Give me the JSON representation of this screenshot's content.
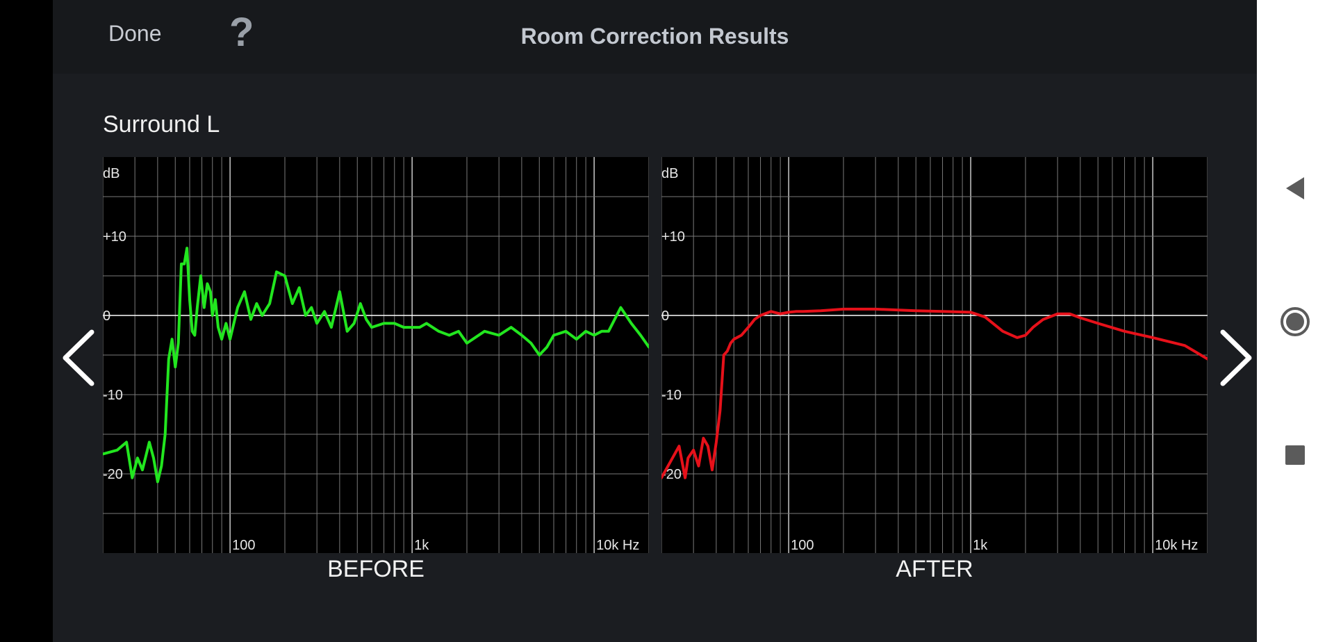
{
  "header": {
    "done_label": "Done",
    "help_label": "?",
    "title": "Room Correction Results"
  },
  "channel_name": "Surround L",
  "charts": [
    {
      "caption": "BEFORE",
      "y_unit": "dB",
      "y_ticks": [
        "+10",
        "0",
        "-10",
        "-20"
      ],
      "x_ticks": [
        "100",
        "1k",
        "10k Hz"
      ],
      "line_color": "#22e61f"
    },
    {
      "caption": "AFTER",
      "y_unit": "dB",
      "y_ticks": [
        "+10",
        "0",
        "-10",
        "-20"
      ],
      "x_ticks": [
        "100",
        "1k",
        "10k Hz"
      ],
      "line_color": "#e6111a"
    }
  ],
  "chart_data": [
    {
      "type": "line",
      "title": "BEFORE",
      "xlabel": "Hz",
      "ylabel": "dB",
      "x_scale": "log",
      "xlim": [
        20,
        20000
      ],
      "ylim": [
        -30,
        20
      ],
      "grid": true,
      "series": [
        {
          "x": [
            20,
            24,
            27,
            29,
            31,
            33,
            36,
            38,
            40,
            42,
            44,
            46,
            48,
            50,
            52,
            54,
            56,
            58,
            60,
            62,
            64,
            66,
            69,
            72,
            75,
            78,
            80,
            83,
            86,
            90,
            95,
            100,
            110,
            120,
            130,
            140,
            150,
            165,
            180,
            200,
            220,
            240,
            260,
            280,
            300,
            330,
            360,
            400,
            440,
            480,
            520,
            560,
            600,
            700,
            800,
            900,
            1000,
            1100,
            1200,
            1400,
            1600,
            1800,
            2000,
            2500,
            3000,
            3500,
            4000,
            4500,
            5000,
            5500,
            6000,
            7000,
            8000,
            9000,
            10000,
            11000,
            12000,
            14000,
            16000,
            18000,
            20000
          ],
          "y": [
            -17.5,
            -17,
            -16,
            -20.5,
            -18,
            -19.5,
            -16,
            -18,
            -21,
            -19,
            -15,
            -5.5,
            -3,
            -6.5,
            -3.5,
            6.5,
            6.5,
            8.5,
            2,
            -2,
            -2.5,
            1,
            5,
            1,
            4,
            3,
            0,
            2,
            -1.5,
            -3,
            -1,
            -3,
            1,
            3,
            -0.5,
            1.5,
            0,
            1.5,
            5.5,
            5,
            1.5,
            3.5,
            0,
            1,
            -1,
            0.5,
            -1.5,
            3,
            -2,
            -1,
            1.5,
            -0.5,
            -1.5,
            -1,
            -1,
            -1.5,
            -1.5,
            -1.5,
            -1,
            -2,
            -2.5,
            -2,
            -3.5,
            -2,
            -2.5,
            -1.5,
            -2.5,
            -3.5,
            -5,
            -4,
            -2.5,
            -2,
            -3,
            -2,
            -2.5,
            -2,
            -2,
            1,
            -1,
            -2.5,
            -4
          ]
        }
      ]
    },
    {
      "type": "line",
      "title": "AFTER",
      "xlabel": "Hz",
      "ylabel": "dB",
      "x_scale": "log",
      "xlim": [
        20,
        20000
      ],
      "ylim": [
        -30,
        20
      ],
      "grid": true,
      "series": [
        {
          "x": [
            20,
            23,
            25,
            27,
            28,
            30,
            32,
            34,
            36,
            38,
            40,
            42,
            44,
            46,
            48,
            50,
            55,
            60,
            65,
            70,
            80,
            90,
            100,
            110,
            120,
            150,
            200,
            300,
            500,
            700,
            1000,
            1200,
            1500,
            1800,
            2000,
            2200,
            2500,
            3000,
            3500,
            4000,
            5000,
            7000,
            10000,
            15000,
            20000
          ],
          "y": [
            -20.5,
            -18,
            -16.5,
            -20.5,
            -18,
            -17,
            -19,
            -15.5,
            -16.5,
            -19.5,
            -16,
            -12,
            -5,
            -4.5,
            -3.5,
            -3,
            -2.5,
            -1.5,
            -0.5,
            0,
            0.5,
            0.2,
            0.4,
            0.5,
            0.5,
            0.6,
            0.8,
            0.8,
            0.6,
            0.5,
            0.4,
            -0.2,
            -2,
            -2.8,
            -2.5,
            -1.5,
            -0.5,
            0.2,
            0.2,
            -0.3,
            -1,
            -2,
            -2.8,
            -3.8,
            -5.5
          ]
        }
      ]
    }
  ]
}
